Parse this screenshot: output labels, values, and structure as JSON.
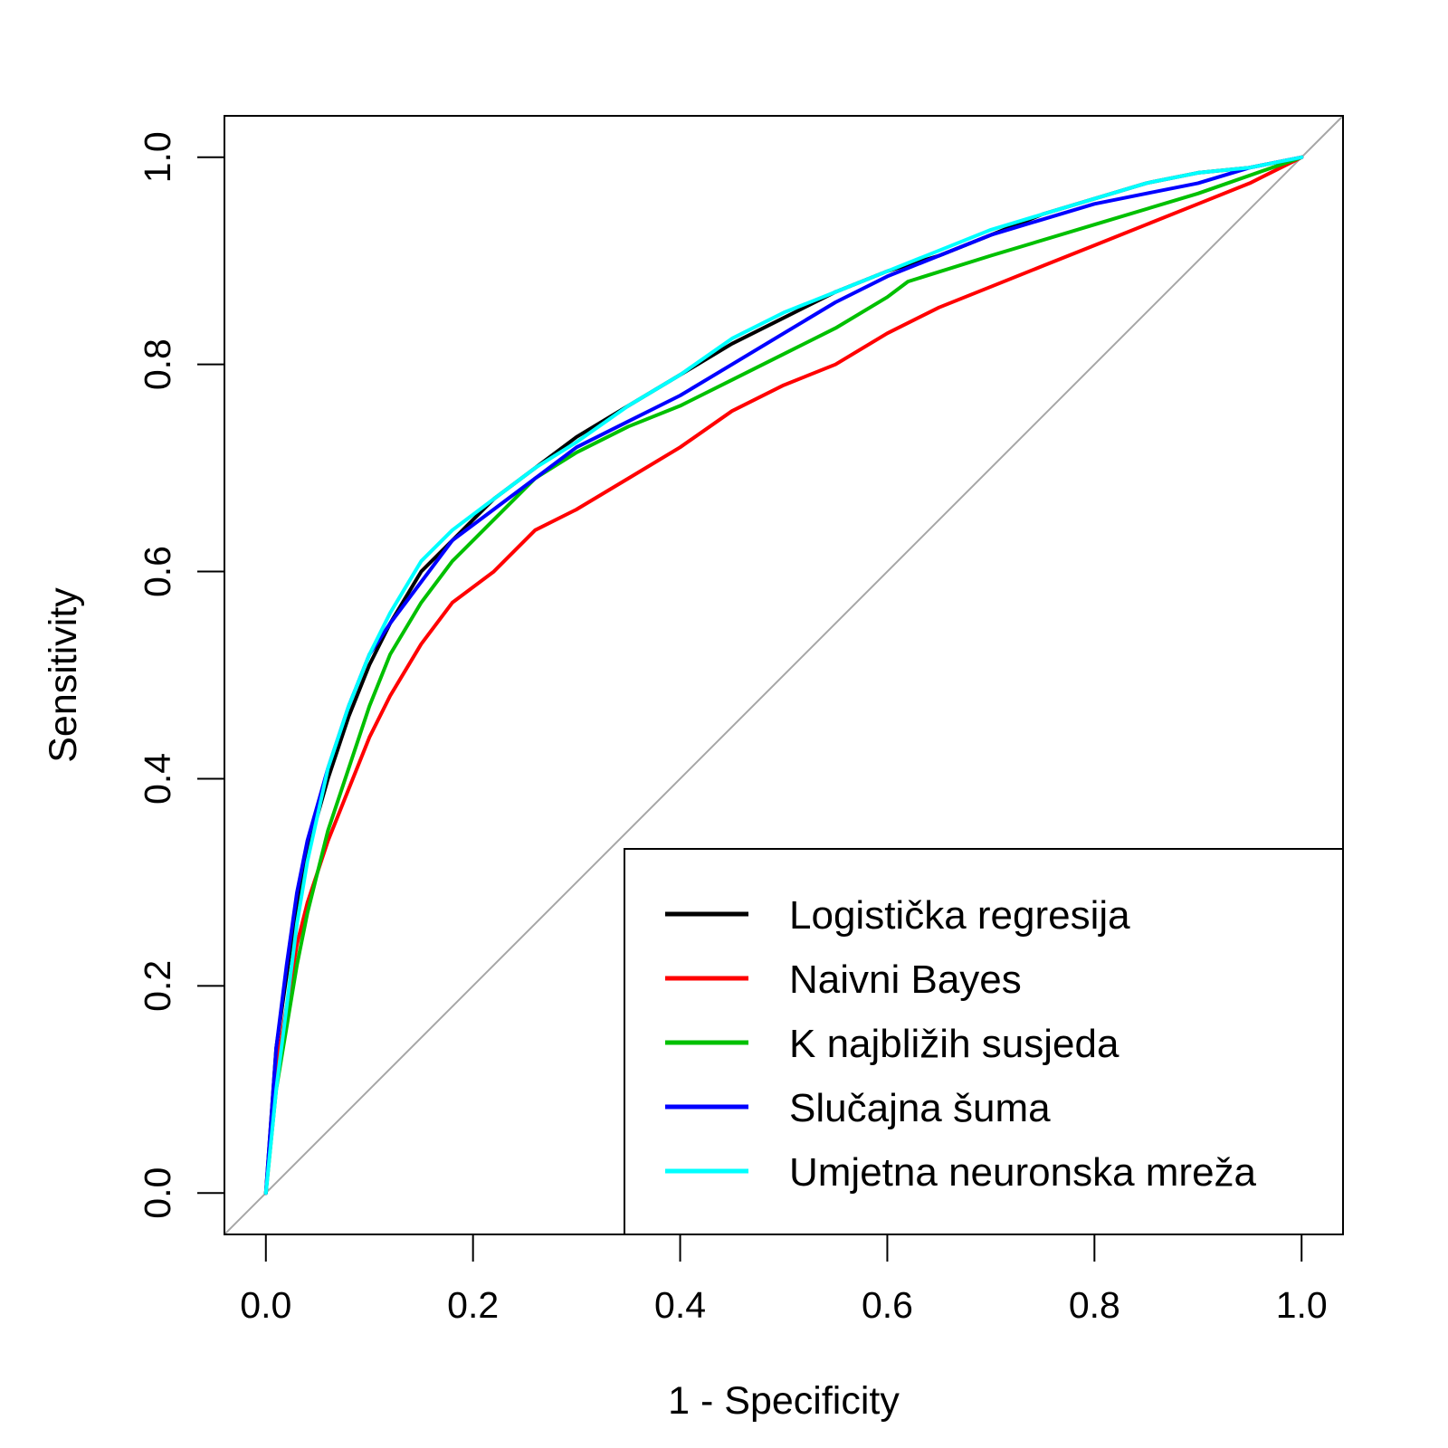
{
  "chart_data": {
    "type": "line",
    "title": "",
    "xlabel": "1 - Specificity",
    "ylabel": "Sensitivity",
    "xlim": [
      -0.04,
      1.04
    ],
    "ylim": [
      -0.04,
      1.04
    ],
    "x_ticks": [
      0.0,
      0.2,
      0.4,
      0.6,
      0.8,
      1.0
    ],
    "x_tick_labels": [
      "0.0",
      "0.2",
      "0.4",
      "0.6",
      "0.8",
      "1.0"
    ],
    "y_ticks": [
      0.0,
      0.2,
      0.4,
      0.6,
      0.8,
      1.0
    ],
    "y_tick_labels": [
      "0.0",
      "0.2",
      "0.4",
      "0.6",
      "0.8",
      "1.0"
    ],
    "grid": false,
    "legend_position": "bottom-right",
    "reference_line": {
      "x": [
        -0.04,
        1.04
      ],
      "y": [
        -0.04,
        1.04
      ],
      "color": "#a6a6a6"
    },
    "series": [
      {
        "name": "Logistička regresija",
        "color": "#000000",
        "x": [
          0.0,
          0.01,
          0.02,
          0.03,
          0.04,
          0.06,
          0.08,
          0.1,
          0.12,
          0.15,
          0.18,
          0.22,
          0.26,
          0.3,
          0.35,
          0.4,
          0.45,
          0.5,
          0.55,
          0.6,
          0.65,
          0.7,
          0.75,
          0.8,
          0.85,
          0.9,
          0.95,
          1.0
        ],
        "y": [
          0.0,
          0.14,
          0.21,
          0.28,
          0.33,
          0.4,
          0.46,
          0.51,
          0.55,
          0.6,
          0.63,
          0.67,
          0.7,
          0.73,
          0.76,
          0.79,
          0.82,
          0.845,
          0.87,
          0.89,
          0.905,
          0.925,
          0.945,
          0.96,
          0.975,
          0.985,
          0.99,
          1.0
        ]
      },
      {
        "name": "Naivni Bayes",
        "color": "#ff0000",
        "x": [
          0.0,
          0.01,
          0.02,
          0.03,
          0.04,
          0.06,
          0.08,
          0.1,
          0.12,
          0.15,
          0.18,
          0.22,
          0.26,
          0.3,
          0.35,
          0.4,
          0.45,
          0.5,
          0.55,
          0.6,
          0.65,
          0.7,
          0.75,
          0.8,
          0.85,
          0.9,
          0.95,
          1.0
        ],
        "y": [
          0.0,
          0.12,
          0.18,
          0.24,
          0.28,
          0.34,
          0.39,
          0.44,
          0.48,
          0.53,
          0.57,
          0.6,
          0.64,
          0.66,
          0.69,
          0.72,
          0.755,
          0.78,
          0.8,
          0.83,
          0.855,
          0.875,
          0.895,
          0.915,
          0.935,
          0.955,
          0.975,
          1.0
        ]
      },
      {
        "name": "K najbližih susjeda",
        "color": "#00c000",
        "x": [
          0.0,
          0.01,
          0.02,
          0.03,
          0.04,
          0.06,
          0.08,
          0.1,
          0.12,
          0.15,
          0.18,
          0.22,
          0.26,
          0.3,
          0.35,
          0.4,
          0.45,
          0.5,
          0.55,
          0.6,
          0.62,
          0.7,
          0.8,
          0.9,
          1.0
        ],
        "y": [
          0.0,
          0.1,
          0.16,
          0.22,
          0.27,
          0.35,
          0.41,
          0.47,
          0.52,
          0.57,
          0.61,
          0.65,
          0.69,
          0.715,
          0.74,
          0.76,
          0.785,
          0.81,
          0.835,
          0.865,
          0.88,
          0.905,
          0.935,
          0.965,
          1.0
        ]
      },
      {
        "name": "Slučajna šuma",
        "color": "#0000ff",
        "x": [
          0.0,
          0.01,
          0.02,
          0.03,
          0.04,
          0.06,
          0.08,
          0.1,
          0.12,
          0.15,
          0.18,
          0.22,
          0.26,
          0.3,
          0.35,
          0.4,
          0.45,
          0.5,
          0.55,
          0.6,
          0.65,
          0.7,
          0.75,
          0.8,
          0.85,
          0.9,
          0.95,
          1.0
        ],
        "y": [
          0.0,
          0.14,
          0.22,
          0.29,
          0.34,
          0.41,
          0.47,
          0.52,
          0.55,
          0.59,
          0.63,
          0.66,
          0.69,
          0.72,
          0.745,
          0.77,
          0.8,
          0.83,
          0.86,
          0.885,
          0.905,
          0.925,
          0.94,
          0.955,
          0.965,
          0.975,
          0.99,
          1.0
        ]
      },
      {
        "name": "Umjetna neuronska mreža",
        "color": "#00ffff",
        "x": [
          0.0,
          0.01,
          0.02,
          0.03,
          0.04,
          0.06,
          0.08,
          0.1,
          0.12,
          0.15,
          0.18,
          0.22,
          0.26,
          0.3,
          0.35,
          0.4,
          0.45,
          0.5,
          0.55,
          0.6,
          0.65,
          0.7,
          0.75,
          0.8,
          0.85,
          0.9,
          0.95,
          1.0
        ],
        "y": [
          0.0,
          0.1,
          0.18,
          0.26,
          0.32,
          0.41,
          0.47,
          0.52,
          0.56,
          0.61,
          0.64,
          0.67,
          0.7,
          0.725,
          0.76,
          0.79,
          0.825,
          0.85,
          0.87,
          0.89,
          0.91,
          0.93,
          0.945,
          0.96,
          0.975,
          0.985,
          0.99,
          1.0
        ]
      }
    ]
  }
}
